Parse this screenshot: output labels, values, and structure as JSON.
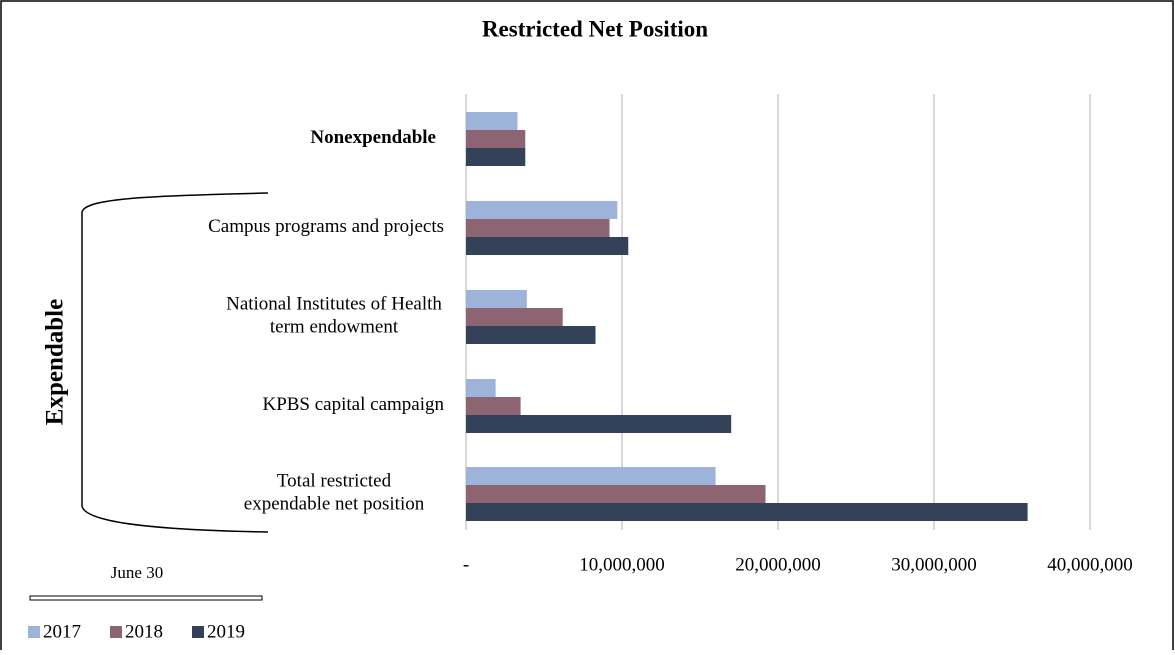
{
  "chart_data": {
    "type": "bar",
    "orientation": "horizontal",
    "title": "Restricted Net Position",
    "categories": [
      [
        "Nonexpendable"
      ],
      [
        "Campus programs and projects"
      ],
      [
        "National Institutes of Health",
        "term endowment"
      ],
      [
        "KPBS capital campaign"
      ],
      [
        "Total restricted",
        "expendable net position"
      ]
    ],
    "group_label": "Expendable",
    "legend_title": "June 30",
    "series": [
      {
        "name": "2017",
        "color": "#9db3d9",
        "values": [
          3300000,
          9700000,
          3900000,
          1900000,
          16000000
        ]
      },
      {
        "name": "2018",
        "color": "#8c6472",
        "values": [
          3800000,
          9200000,
          6200000,
          3500000,
          19200000
        ]
      },
      {
        "name": "2019",
        "color": "#344259",
        "values": [
          3800000,
          10400000,
          8300000,
          17000000,
          36000000
        ]
      }
    ],
    "xlim": [
      0,
      40000000
    ],
    "xticks": [
      {
        "value": 0,
        "label": "-"
      },
      {
        "value": 10000000,
        "label": "10,000,000"
      },
      {
        "value": 20000000,
        "label": "20,000,000"
      },
      {
        "value": 30000000,
        "label": "30,000,000"
      },
      {
        "value": 40000000,
        "label": "40,000,000"
      }
    ],
    "grid": true
  }
}
